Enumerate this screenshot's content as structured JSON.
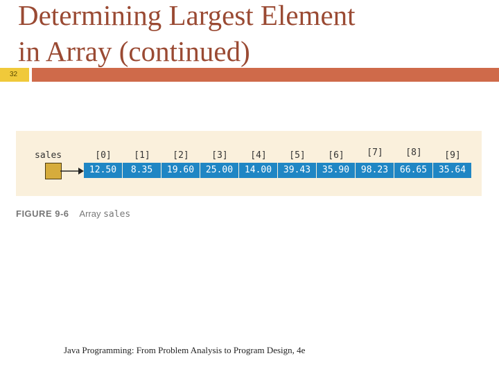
{
  "slide": {
    "title_line1": "Determining Largest Element",
    "title_line2": "in Array (continued)",
    "number": "32"
  },
  "figure": {
    "variable": "sales",
    "indices": [
      "[0]",
      "[1]",
      "[2]",
      "[3]",
      "[4]",
      "[5]",
      "[6]",
      "[7]",
      "[8]",
      "[9]"
    ],
    "values": [
      "12.50",
      "8.35",
      "19.60",
      "25.00",
      "14.00",
      "39.43",
      "35.90",
      "98.23",
      "66.65",
      "35.64"
    ],
    "caption_label": "FIGURE 9-6",
    "caption_text": "Array",
    "caption_code": "sales"
  },
  "footer": {
    "text": "Java Programming: From Problem Analysis to Program Design, 4e"
  },
  "colors": {
    "title": "#9a4a33",
    "rule": "#cf6a4a",
    "slide_number_bg": "#f0c93a",
    "cell": "#1f86c4",
    "panel": "#faf0dc",
    "ref_box": "#d6ac3c"
  }
}
